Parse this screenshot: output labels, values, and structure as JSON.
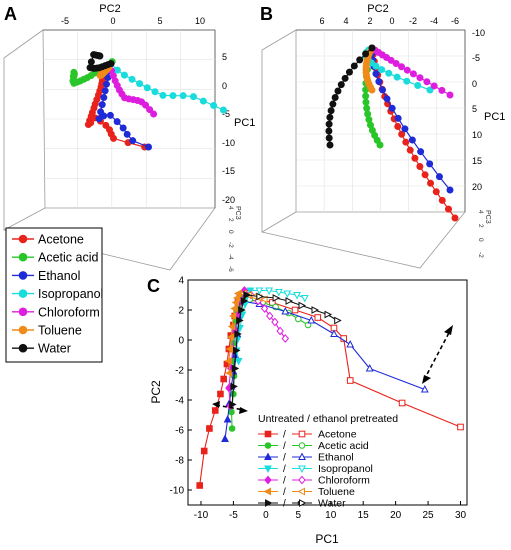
{
  "panel_labels": [
    "A",
    "B",
    "C"
  ],
  "panel_a": {
    "top_axis_label": "PC2",
    "top_ticks": [
      "-5",
      "0",
      "5",
      "10"
    ],
    "right_axis_label": "PC1",
    "right_ticks": [
      "5",
      "0",
      "-5",
      "-10",
      "-15",
      "-20"
    ],
    "bottom_axis_label": "PC3",
    "bottom_ticks": [
      "4",
      "2",
      "0",
      "-2",
      "-4",
      "-6"
    ],
    "legend": [
      {
        "name": "Acetone",
        "color": "#e8231b"
      },
      {
        "name": "Acetic acid",
        "color": "#28c628"
      },
      {
        "name": "Ethanol",
        "color": "#1f2bd6"
      },
      {
        "name": "Isopropanol",
        "color": "#19dcdc"
      },
      {
        "name": "Chloroform",
        "color": "#de1edf"
      },
      {
        "name": "Toluene",
        "color": "#f08a18"
      },
      {
        "name": "Water",
        "color": "#111111"
      }
    ]
  },
  "panel_b": {
    "top_axis_label": "PC2",
    "top_ticks": [
      "6",
      "4",
      "2",
      "0",
      "-2",
      "-4",
      "-6"
    ],
    "right_axis_label": "PC1",
    "right_ticks": [
      "-10",
      "-5",
      "0",
      "5",
      "10",
      "15",
      "20"
    ],
    "bottom_axis_label": "PC3",
    "bottom_ticks": [
      "4",
      "2",
      "0",
      "-2"
    ]
  },
  "chart_data": {
    "type": "scatter",
    "xlabel": "PC1",
    "ylabel": "PC2",
    "xlim": [
      -12,
      31
    ],
    "ylim": [
      -11,
      4
    ],
    "xticks": [
      -10,
      -5,
      0,
      5,
      10,
      15,
      20,
      25,
      30
    ],
    "yticks": [
      -10,
      -8,
      -6,
      -4,
      -2,
      0,
      2,
      4
    ],
    "legend_title": "Untreated / ethanol pretreated",
    "legend_position": "bottom-center",
    "series": [
      {
        "name": "Acetone",
        "color": "#e8231b",
        "untreated": {
          "x": [
            -10.2,
            -9.5,
            -8.7,
            -7.8,
            -7.0,
            -6.5,
            -6.0,
            -5.7,
            -5.4,
            -5.0,
            -4.8,
            -4.5,
            -4.3,
            -4.0
          ],
          "y": [
            -9.7,
            -7.4,
            -5.9,
            -4.7,
            -3.6,
            -2.6,
            -1.6,
            -0.6,
            0.3,
            1.0,
            1.6,
            2.0,
            2.5,
            2.9
          ]
        },
        "pretreated": {
          "x": [
            -4.0,
            -2.0,
            1.0,
            4.5,
            8.0,
            10.5,
            12.0,
            13.0,
            21.0,
            30.0
          ],
          "y": [
            2.9,
            2.8,
            2.5,
            2.0,
            1.5,
            0.8,
            0.1,
            -2.7,
            -4.2,
            -5.8
          ]
        }
      },
      {
        "name": "Acetic acid",
        "color": "#28c628",
        "untreated": {
          "x": [
            -5.2,
            -5.3,
            -5.0,
            -4.9,
            -5.1,
            -5.0,
            -4.8,
            -4.6,
            -4.4,
            -4.1,
            -3.8
          ],
          "y": [
            -5.9,
            -4.8,
            -3.6,
            -2.4,
            -1.4,
            -0.2,
            0.7,
            1.3,
            1.9,
            2.4,
            2.8
          ]
        },
        "pretreated": {
          "x": [
            -3.8,
            -2.5,
            -0.5,
            1.5,
            3.5,
            5.0,
            6.5
          ],
          "y": [
            2.8,
            2.7,
            2.5,
            2.2,
            1.8,
            1.4,
            1.0
          ]
        }
      },
      {
        "name": "Ethanol",
        "color": "#1f2bd6",
        "untreated": {
          "x": [
            -6.3,
            -5.9,
            -5.6,
            -5.3,
            -5.0,
            -4.7,
            -4.4,
            -4.2,
            -4.0
          ],
          "y": [
            -6.6,
            -5.3,
            -4.2,
            -3.1,
            -2.1,
            -1.0,
            0.4,
            1.6,
            2.6
          ]
        },
        "pretreated": {
          "x": [
            -4.0,
            -1.0,
            3.0,
            7.0,
            10.5,
            13.0,
            16.0,
            24.5
          ],
          "y": [
            2.6,
            2.4,
            1.9,
            1.3,
            0.4,
            -0.3,
            -1.9,
            -3.3
          ]
        }
      },
      {
        "name": "Isopropanol",
        "color": "#19dcdc",
        "untreated": {
          "x": [
            -4.2,
            -4.5,
            -4.4,
            -4.0,
            -3.6,
            -3.2,
            -2.8,
            -2.4
          ],
          "y": [
            -1.4,
            -0.7,
            0.0,
            0.8,
            1.7,
            2.4,
            3.0,
            3.3
          ]
        },
        "pretreated": {
          "x": [
            -2.4,
            -1.0,
            0.5,
            2.0,
            3.3,
            4.8,
            6.0
          ],
          "y": [
            3.3,
            3.3,
            3.3,
            3.2,
            3.1,
            3.0,
            2.8
          ]
        }
      },
      {
        "name": "Chloroform",
        "color": "#de1edf",
        "untreated": {
          "x": [
            -5.5,
            -5.7,
            -5.4,
            -5.1,
            -4.7,
            -4.3,
            -3.8,
            -3.3
          ],
          "y": [
            -4.4,
            -3.2,
            -1.9,
            -0.6,
            0.6,
            1.7,
            2.6,
            3.3
          ]
        },
        "pretreated": {
          "x": [
            -3.3,
            -2.3,
            -1.2,
            -0.2,
            0.6,
            1.4,
            2.2,
            3.0
          ],
          "y": [
            3.3,
            3.0,
            2.6,
            2.1,
            1.6,
            1.2,
            0.6,
            0.1
          ]
        }
      },
      {
        "name": "Toluene",
        "color": "#f08a18",
        "untreated": {
          "x": [
            -5.6,
            -5.7,
            -5.5,
            -5.3,
            -5.2,
            -5.0,
            -4.8,
            -4.6,
            -4.4,
            -4.2
          ],
          "y": [
            -2.2,
            -1.4,
            -0.6,
            0.2,
            0.9,
            1.6,
            2.1,
            2.5,
            2.8,
            3.1
          ]
        },
        "pretreated": {
          "x": [
            -4.2,
            -3.4,
            -2.6,
            -1.8,
            -1.0,
            -0.2
          ],
          "y": [
            3.1,
            3.1,
            3.0,
            2.9,
            2.8,
            2.7
          ]
        }
      },
      {
        "name": "Water",
        "color": "#111111",
        "untreated": {
          "x": [
            -5.2,
            -5.0,
            -4.8,
            -4.6,
            -4.4,
            -4.1,
            -3.8,
            -3.4,
            -3.0
          ],
          "y": [
            -4.3,
            -3.1,
            -1.9,
            -0.7,
            0.4,
            1.3,
            2.0,
            2.6,
            3.0
          ]
        },
        "pretreated": {
          "x": [
            -3.0,
            -1.0,
            1.5,
            3.5,
            5.5,
            7.5,
            9.5,
            11.0
          ],
          "y": [
            3.0,
            2.9,
            2.8,
            2.6,
            2.3,
            2.0,
            1.7,
            1.3
          ]
        }
      }
    ]
  }
}
